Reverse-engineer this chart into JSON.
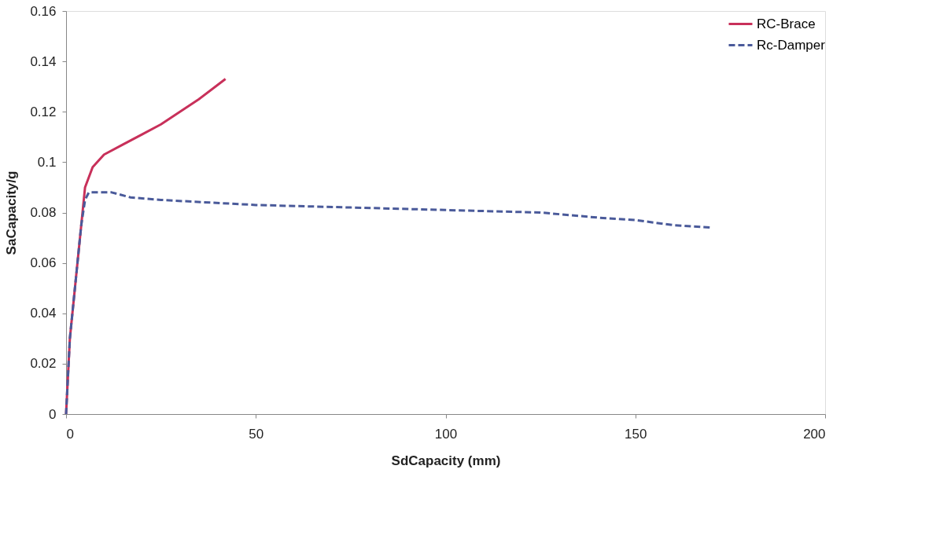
{
  "chart_data": {
    "type": "line",
    "xlabel": "SdCapacity (mm)",
    "ylabel": "SaCapacity/g",
    "xlim": [
      0,
      200
    ],
    "xticks": [
      0,
      50,
      100,
      150,
      200
    ],
    "ylim": [
      0,
      0.16
    ],
    "yticks": [
      0,
      0.02,
      0.04,
      0.06,
      0.08,
      0.1,
      0.12,
      0.14,
      0.16
    ],
    "grid": false,
    "legend": "top right",
    "marker": "none",
    "series": [
      {
        "name": "RC-Brace",
        "color": "#c8305a",
        "line_style": "solid",
        "x": [
          0,
          1,
          2,
          3,
          4,
          5,
          7,
          10,
          15,
          20,
          25,
          30,
          35,
          42
        ],
        "values": [
          0,
          0.03,
          0.045,
          0.06,
          0.075,
          0.09,
          0.098,
          0.103,
          0.107,
          0.111,
          0.115,
          0.12,
          0.125,
          0.133
        ]
      },
      {
        "name": "Rc-Damper",
        "color": "#4a5a9a",
        "line_style": "dashed",
        "x": [
          0,
          1,
          2,
          3,
          4,
          5,
          6,
          12,
          17,
          25,
          50,
          75,
          100,
          125,
          140,
          150,
          160,
          170
        ],
        "values": [
          0,
          0.03,
          0.045,
          0.06,
          0.075,
          0.085,
          0.088,
          0.088,
          0.086,
          0.085,
          0.083,
          0.082,
          0.081,
          0.08,
          0.078,
          0.077,
          0.075,
          0.074
        ]
      }
    ]
  }
}
